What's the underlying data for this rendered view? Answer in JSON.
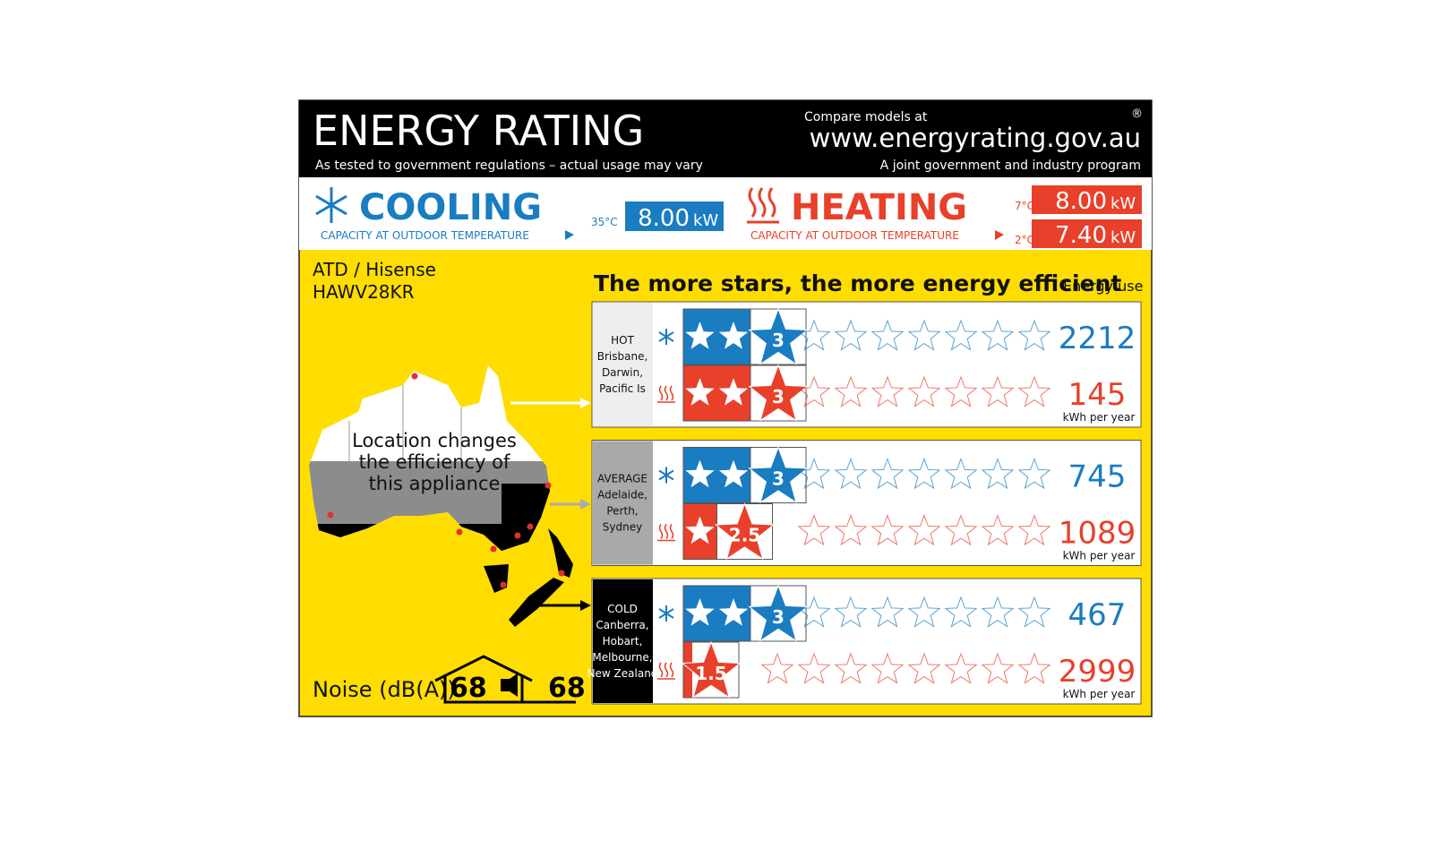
{
  "header": {
    "title": "ENERGY RATING",
    "subtitle": "As tested to government regulations – actual usage may vary",
    "compare": "Compare models at",
    "url": "www.energyrating.gov.au",
    "program": "A joint government and industry program",
    "registered": "®"
  },
  "capacity": {
    "cooling": {
      "label": "COOLING",
      "caption": "CAPACITY AT OUTDOOR TEMPERATURE",
      "temp": "35°C",
      "value": "8.00",
      "unit": "kW"
    },
    "heating": {
      "label": "HEATING",
      "caption": "CAPACITY AT OUTDOOR TEMPERATURE",
      "rows": [
        {
          "temp": "7°C",
          "value": "8.00",
          "unit": "kW"
        },
        {
          "temp": "2°C",
          "value": "7.40",
          "unit": "kW"
        }
      ]
    }
  },
  "model": {
    "brand": "ATD / Hisense",
    "model": "HAWV28KR"
  },
  "map_caption": [
    "Location changes",
    "the efficiency of",
    "this appliance"
  ],
  "noise": {
    "label": "Noise (dB(A))",
    "indoor": "68",
    "outdoor": "68"
  },
  "efficiency_title": "The more stars, the more energy efficient",
  "energy_use_label": "Energy use",
  "zones": [
    {
      "name": "HOT",
      "places": [
        "Brisbane,",
        "Darwin,",
        "Pacific Is"
      ],
      "cooling": {
        "stars": 3,
        "energy": 2212
      },
      "heating": {
        "stars": 3,
        "energy": 145
      },
      "unit": "kWh per year"
    },
    {
      "name": "AVERAGE",
      "places": [
        "Adelaide,",
        "Perth,",
        "Sydney"
      ],
      "cooling": {
        "stars": 3,
        "energy": 745
      },
      "heating": {
        "stars": 2.5,
        "energy": 1089
      },
      "unit": "kWh per year"
    },
    {
      "name": "COLD",
      "places": [
        "Canberra,",
        "Hobart,",
        "Melbourne,",
        "New Zealand"
      ],
      "cooling": {
        "stars": 3,
        "energy": 467
      },
      "heating": {
        "stars": 1.5,
        "energy": 2999
      },
      "unit": "kWh per year"
    }
  ]
}
